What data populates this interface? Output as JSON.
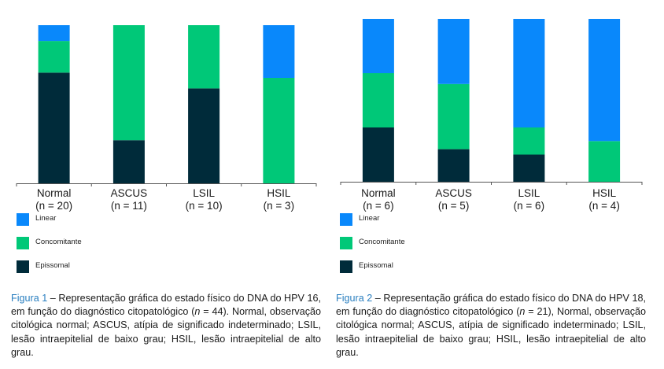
{
  "colors": {
    "linear": "#0988fb",
    "concomitante": "#00c878",
    "epissomal": "#002b3a",
    "axis": "#555555",
    "caption_accent": "#2a7fc0"
  },
  "chart_data": [
    {
      "type": "bar",
      "stacked": true,
      "normalized": true,
      "title": "",
      "xlabel": "",
      "ylabel": "",
      "ylim": [
        0,
        100
      ],
      "grid": false,
      "legend_position": "bottom-left",
      "categories": [
        "Normal",
        "ASCUS",
        "LSIL",
        "HSIL"
      ],
      "category_counts": [
        "(n = 20)",
        "(n = 11)",
        "(n = 10)",
        "(n = 3)"
      ],
      "series": [
        {
          "name": "Epissomal",
          "values": [
            14,
            3,
            6,
            0
          ]
        },
        {
          "name": "Concomitante",
          "values": [
            4,
            8,
            4,
            2
          ]
        },
        {
          "name": "Linear",
          "values": [
            2,
            0,
            0,
            1
          ]
        }
      ],
      "legend": [
        "Linear",
        "Concomitante",
        "Episssomal"
      ],
      "caption": {
        "figure_label": "Figura 1",
        "text": " – Representação gráfica do estado físico do DNA do HPV 16, em função do diagnóstico citopatológico (",
        "n_italic": "n",
        "text_after": " = 44). Normal, observação citológica normal; ASCUS, atípia de significado indeterminado; LSIL, lesão intraepitelial de baixo grau; HSIL, lesão intraepitelial de alto grau."
      }
    },
    {
      "type": "bar",
      "stacked": true,
      "normalized": true,
      "title": "",
      "xlabel": "",
      "ylabel": "",
      "ylim": [
        0,
        100
      ],
      "grid": false,
      "legend_position": "bottom-left",
      "categories": [
        "Normal",
        "ASCUS",
        "LSIL",
        "HSIL"
      ],
      "category_counts": [
        "(n = 6)",
        "(n = 5)",
        "(n = 6)",
        "(n = 4)"
      ],
      "series": [
        {
          "name": "Epissomal",
          "values": [
            2,
            1,
            1,
            0
          ]
        },
        {
          "name": "Concomitante",
          "values": [
            2,
            2,
            1,
            1
          ]
        },
        {
          "name": "Linear",
          "values": [
            2,
            2,
            4,
            3
          ]
        }
      ],
      "legend": [
        "Linear",
        "Concomitante",
        "Epissomal"
      ],
      "caption": {
        "figure_label": "Figura 2",
        "text": " – Representação gráfica do estado físico do DNA do HPV 18, em função do diagnóstico citopatológico (",
        "n_italic": "n",
        "text_after": " = 21), Normal, observação citológica normal; ASCUS, atípia de significado indeterminado; LSIL, lesão intraepitelial de baixo grau; HSIL, lesão intraepitelial de alto grau."
      }
    }
  ],
  "legend_labels": [
    "Linear",
    "Concomitante",
    "Epissomal"
  ]
}
